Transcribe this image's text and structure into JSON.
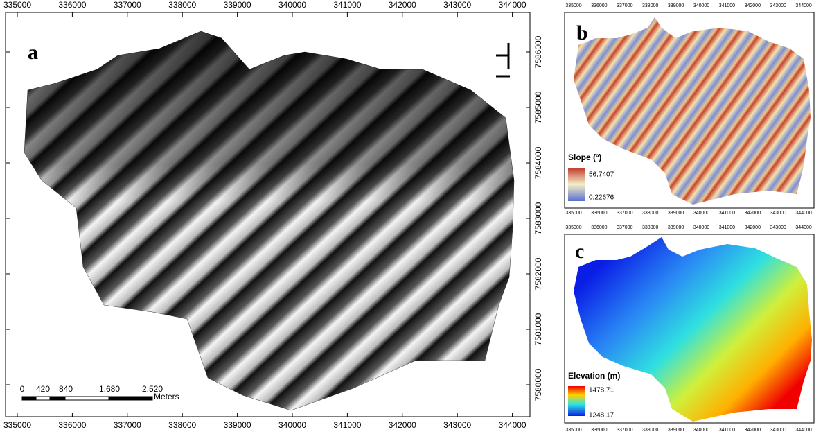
{
  "panels": [
    {
      "label": "a",
      "x_labels": [
        "335000",
        "336000",
        "337000",
        "338000",
        "339000",
        "340000",
        "341000",
        "342000",
        "343000",
        "344000"
      ],
      "y_labels": [
        "7586000",
        "7585000",
        "7584000",
        "7583000",
        "7582000",
        "7581000",
        "7580000"
      ],
      "scale_bar": {
        "labels": [
          "0",
          "420",
          "840",
          "1.680",
          "2.520"
        ],
        "unit": "Meters"
      }
    },
    {
      "label": "b",
      "x_labels": [
        "335000",
        "336000",
        "337000",
        "338000",
        "339000",
        "340000",
        "341000",
        "342000",
        "343000",
        "344000"
      ],
      "legend": {
        "title": "Slope (º)",
        "max": "56,7407",
        "min": "0,22676"
      }
    },
    {
      "label": "c",
      "x_labels": [
        "335000",
        "336000",
        "337000",
        "338000",
        "339000",
        "340000",
        "341000",
        "342000",
        "343000",
        "344000"
      ],
      "legend": {
        "title": "Elevation (m)",
        "max": "1478,71",
        "min": "1248,17"
      }
    }
  ]
}
